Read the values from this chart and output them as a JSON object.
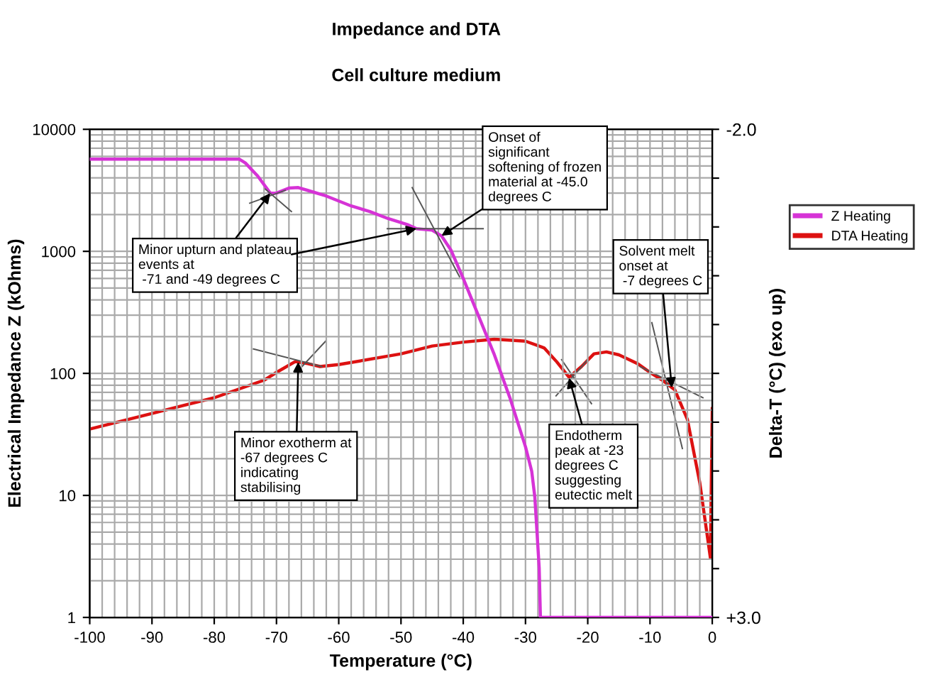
{
  "chart_data": {
    "type": "line",
    "title": "Impedance and DTA",
    "subtitle": "Cell culture medium",
    "xlabel": "Temperature (°C)",
    "ylabel": "Electrical Impedance Z (kOhms)",
    "y2label": "Delta-T (°C) (exo up)",
    "xlim": [
      -100,
      0
    ],
    "xticks": [
      -100,
      -90,
      -80,
      -70,
      -60,
      -50,
      -40,
      -30,
      -20,
      -10,
      0
    ],
    "log": "y",
    "ylim": [
      1,
      10000
    ],
    "yticks": [
      1,
      10,
      100,
      1000,
      10000
    ],
    "y2lim": [
      3.0,
      -2.0
    ],
    "y2ticks": [
      {
        "value": -2.0,
        "label": "-2.0"
      },
      {
        "value": -1.5,
        "label": null
      },
      {
        "value": -1.0,
        "label": null
      },
      {
        "value": -0.5,
        "label": null
      },
      {
        "value": 0.0,
        "label": null
      },
      {
        "value": 0.5,
        "label": null
      },
      {
        "value": 1.0,
        "label": null
      },
      {
        "value": 1.5,
        "label": null
      },
      {
        "value": 2.0,
        "label": null
      },
      {
        "value": 2.5,
        "label": null
      },
      {
        "value": 3.0,
        "label": "+3.0"
      }
    ],
    "grid": true,
    "legend": "right",
    "marker": "none",
    "line_style": "solid",
    "series": [
      {
        "name": "Z Heating",
        "color": "#d633d6",
        "x": [
          -100,
          -76,
          -75,
          -73,
          -71,
          -70,
          -68,
          -66.5,
          -65,
          -62,
          -58,
          -55,
          -52,
          -49,
          -47.5,
          -45,
          -43.5,
          -42,
          -40,
          -37.5,
          -35,
          -32.5,
          -30,
          -29,
          -28.5,
          -27.8,
          -27.6,
          0
        ],
        "values": [
          5700,
          5700,
          5300,
          4130,
          3000,
          3000,
          3300,
          3330,
          3160,
          2840,
          2355,
          2120,
          1850,
          1660,
          1535,
          1490,
          1340,
          1030,
          600,
          292,
          142,
          63,
          25,
          15.8,
          9.7,
          2.55,
          1,
          1
        ]
      },
      {
        "name": "DTA Heating",
        "color": "#dd1111",
        "axis": "y2",
        "x": [
          -100,
          -90,
          -80,
          -72,
          -70,
          -67,
          -65,
          -63,
          -60,
          -50,
          -45,
          -40,
          -35,
          -30,
          -27,
          -25,
          -23,
          -21,
          -19,
          -17,
          -15,
          -12,
          -10,
          -8,
          -6,
          -4,
          -2,
          -0.3,
          0
        ],
        "values": [
          1.07,
          0.91,
          0.75,
          0.57,
          0.49,
          0.38,
          0.4,
          0.43,
          0.41,
          0.3,
          0.22,
          0.18,
          0.15,
          0.17,
          0.24,
          0.38,
          0.54,
          0.43,
          0.3,
          0.28,
          0.31,
          0.4,
          0.49,
          0.57,
          0.67,
          0.97,
          1.62,
          2.39,
          0.86
        ]
      },
      {
        "color": "#555555",
        "x": [
          -74.3,
          -68.6
        ],
        "values": [
          2480,
          3160
        ]
      },
      {
        "color": "#555555",
        "x": [
          -71.8,
          -67.6
        ],
        "values": [
          3240,
          2120
        ]
      },
      {
        "color": "#555555",
        "x": [
          -52.2,
          -36.8
        ],
        "values": [
          1535,
          1535
        ]
      },
      {
        "color": "#555555",
        "x": [
          -48.2,
          -40.6
        ],
        "values": [
          3330,
          620
        ]
      },
      {
        "color": "#555555",
        "axis": "y2",
        "x": [
          -73.7,
          -62.7
        ],
        "values": [
          0.25,
          0.43
        ]
      },
      {
        "color": "#555555",
        "axis": "y2",
        "x": [
          -65.9,
          -62.1
        ],
        "values": [
          0.43,
          0.17
        ]
      },
      {
        "color": "#555555",
        "axis": "y2",
        "x": [
          -25.1,
          -20.0
        ],
        "values": [
          0.73,
          0.36
        ]
      },
      {
        "color": "#555555",
        "axis": "y2",
        "x": [
          -24.2,
          -19.4
        ],
        "values": [
          0.36,
          0.81
        ]
      },
      {
        "color": "#555555",
        "axis": "y2",
        "x": [
          -9.7,
          -4.8
        ],
        "values": [
          -0.02,
          1.27
        ]
      },
      {
        "color": "#555555",
        "axis": "y2",
        "x": [
          -11.6,
          -1.5
        ],
        "values": [
          0.43,
          0.75
        ]
      }
    ],
    "annotations": [
      {
        "text": "Onset of\nsignificant\nsoftening of frozen\nmaterial at -45.0\ndegrees C",
        "x": -43.5,
        "y": 1340
      },
      {
        "text": "Minor upturn and plateau\nevents at\n -71 and -49 degrees C",
        "x": -71,
        "y": 3000
      },
      {
        "text": "Solvent melt\nonset at\n -7 degrees C",
        "x": -6.5,
        "y": 76
      },
      {
        "text": "Minor exotherm at\n-67 degrees C\nindicating\nstabilising",
        "x": -66.5,
        "y": 124
      },
      {
        "text": "Endotherm\npeak at -23\ndegrees C\nsuggesting\neutectic melt",
        "x": -23,
        "y": 92
      }
    ]
  }
}
